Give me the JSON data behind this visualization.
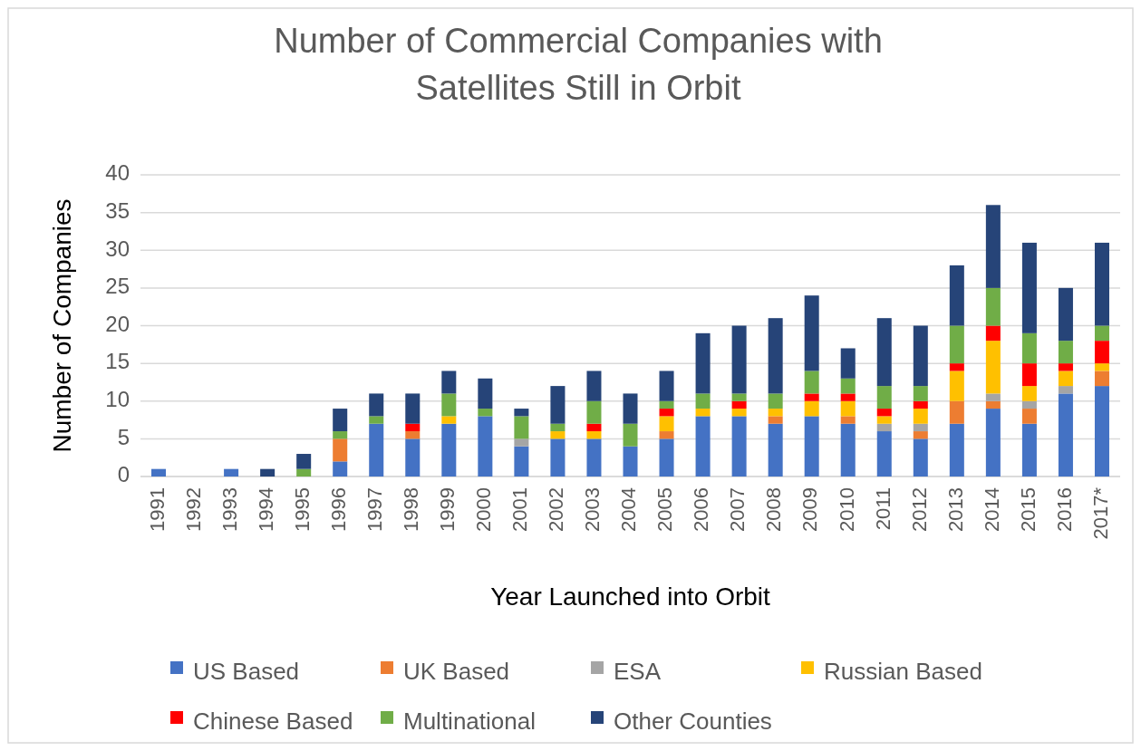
{
  "chart_data": {
    "type": "bar",
    "title": "Number of Commercial Companies with Satellites Still in Orbit",
    "xlabel": "Year Launched into Orbit",
    "ylabel": "Number of Companies",
    "categories": [
      "1991",
      "1992",
      "1993",
      "1994",
      "1995",
      "1996",
      "1997",
      "1998",
      "1999",
      "2000",
      "2001",
      "2002",
      "2003",
      "2004",
      "2005",
      "2006",
      "2007",
      "2008",
      "2009",
      "2010",
      "2011",
      "2012",
      "2013",
      "2014",
      "2015",
      "2016",
      "2017*"
    ],
    "stacked": true,
    "ylim": [
      0,
      40
    ],
    "yticks": [
      0,
      5,
      10,
      15,
      20,
      25,
      30,
      35,
      40
    ],
    "grid": "y",
    "legend": "bottom",
    "series": [
      {
        "name": "US Based",
        "color": "#4472c4",
        "values": [
          1,
          0,
          1,
          0,
          0,
          2,
          7,
          5,
          7,
          8,
          4,
          5,
          5,
          4,
          5,
          8,
          8,
          7,
          8,
          7,
          6,
          5,
          7,
          9,
          7,
          11,
          12
        ]
      },
      {
        "name": "UK Based",
        "color": "#ed7d31",
        "values": [
          0,
          0,
          0,
          0,
          0,
          3,
          0,
          1,
          0,
          0,
          0,
          0,
          0,
          0,
          1,
          0,
          0,
          1,
          0,
          1,
          0,
          1,
          3,
          1,
          2,
          0,
          2
        ]
      },
      {
        "name": "ESA",
        "color": "#a5a5a5",
        "values": [
          0,
          0,
          0,
          0,
          0,
          0,
          0,
          0,
          0,
          0,
          1,
          0,
          0,
          0,
          0,
          0,
          0,
          0,
          0,
          0,
          1,
          1,
          0,
          1,
          1,
          1,
          0
        ]
      },
      {
        "name": "Russian Based",
        "color": "#ffc000",
        "values": [
          0,
          0,
          0,
          0,
          0,
          0,
          0,
          0,
          1,
          0,
          0,
          1,
          1,
          0,
          2,
          1,
          1,
          1,
          2,
          2,
          1,
          2,
          4,
          7,
          2,
          2,
          1
        ]
      },
      {
        "name": "Chinese Based",
        "color": "#ff0000",
        "values": [
          0,
          0,
          0,
          0,
          0,
          0,
          0,
          1,
          0,
          0,
          0,
          0,
          1,
          0,
          1,
          0,
          1,
          0,
          1,
          1,
          1,
          1,
          1,
          2,
          3,
          1,
          3
        ]
      },
      {
        "name": "Multinational",
        "color": "#70ad47",
        "values": [
          0,
          0,
          0,
          0,
          1,
          1,
          1,
          0,
          3,
          1,
          3,
          1,
          3,
          3,
          1,
          2,
          1,
          2,
          3,
          2,
          3,
          2,
          5,
          5,
          4,
          3,
          2
        ]
      },
      {
        "name": "Other Counties",
        "color": "#264478",
        "values": [
          0,
          0,
          0,
          1,
          2,
          3,
          3,
          4,
          3,
          4,
          1,
          5,
          4,
          4,
          4,
          8,
          9,
          10,
          10,
          4,
          9,
          8,
          8,
          11,
          12,
          7,
          11
        ]
      }
    ]
  }
}
